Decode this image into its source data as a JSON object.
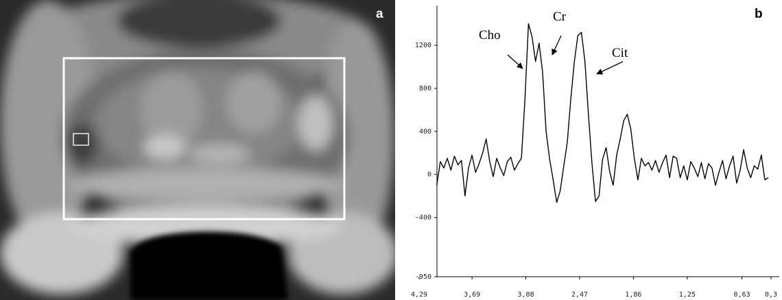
{
  "panels": {
    "a": {
      "label": "a"
    }
  },
  "chart_data": {
    "type": "line",
    "panel_label": "b",
    "annotations": [
      "Cho",
      "Cr",
      "Cit"
    ],
    "x": [
      4.09,
      4.05,
      4.01,
      3.97,
      3.93,
      3.89,
      3.85,
      3.81,
      3.77,
      3.73,
      3.69,
      3.65,
      3.61,
      3.57,
      3.53,
      3.49,
      3.45,
      3.41,
      3.37,
      3.33,
      3.29,
      3.25,
      3.21,
      3.17,
      3.13,
      3.09,
      3.05,
      3.01,
      2.97,
      2.93,
      2.89,
      2.85,
      2.81,
      2.77,
      2.73,
      2.69,
      2.65,
      2.61,
      2.57,
      2.53,
      2.49,
      2.45,
      2.41,
      2.37,
      2.33,
      2.29,
      2.25,
      2.21,
      2.17,
      2.13,
      2.09,
      2.05,
      2.01,
      1.97,
      1.93,
      1.89,
      1.85,
      1.81,
      1.77,
      1.73,
      1.69,
      1.65,
      1.61,
      1.57,
      1.53,
      1.49,
      1.45,
      1.41,
      1.37,
      1.33,
      1.29,
      1.25,
      1.21,
      1.17,
      1.13,
      1.09,
      1.05,
      1.01,
      0.97,
      0.93,
      0.89,
      0.85,
      0.81,
      0.77,
      0.73,
      0.69,
      0.65,
      0.61,
      0.57,
      0.53,
      0.49,
      0.45,
      0.41,
      0.37,
      0.33
    ],
    "values": [
      -100,
      120,
      60,
      150,
      40,
      170,
      90,
      130,
      -200,
      60,
      180,
      20,
      100,
      200,
      330,
      120,
      -20,
      150,
      60,
      -10,
      120,
      160,
      40,
      100,
      150,
      700,
      1400,
      1280,
      1050,
      1220,
      950,
      400,
      140,
      -50,
      -260,
      -150,
      80,
      300,
      700,
      1050,
      1290,
      1320,
      1050,
      550,
      100,
      -250,
      -200,
      140,
      250,
      30,
      -100,
      180,
      330,
      500,
      560,
      420,
      150,
      -50,
      150,
      80,
      110,
      40,
      130,
      20,
      110,
      180,
      -30,
      170,
      150,
      -30,
      80,
      -50,
      120,
      60,
      -20,
      110,
      -40,
      100,
      60,
      -100,
      20,
      130,
      -40,
      80,
      170,
      -80,
      40,
      230,
      60,
      -30,
      80,
      50,
      180,
      -50,
      -30
    ],
    "color": "#000000",
    "xlim": [
      4.29,
      0.3
    ],
    "xticks": [
      {
        "value": 4.29,
        "label": "4,29"
      },
      {
        "value": 3.69,
        "label": "3,69"
      },
      {
        "value": 3.08,
        "label": "3,08"
      },
      {
        "value": 2.47,
        "label": "2,47"
      },
      {
        "value": 1.86,
        "label": "1,86"
      },
      {
        "value": 1.25,
        "label": "1,25"
      },
      {
        "value": 0.63,
        "label": "0,63"
      },
      {
        "value": 0.3,
        "label": "0,3"
      }
    ],
    "ylim": [
      -950,
      1570
    ],
    "yticks": [
      -950,
      -400,
      0,
      400,
      800,
      1200
    ],
    "grid": false
  }
}
